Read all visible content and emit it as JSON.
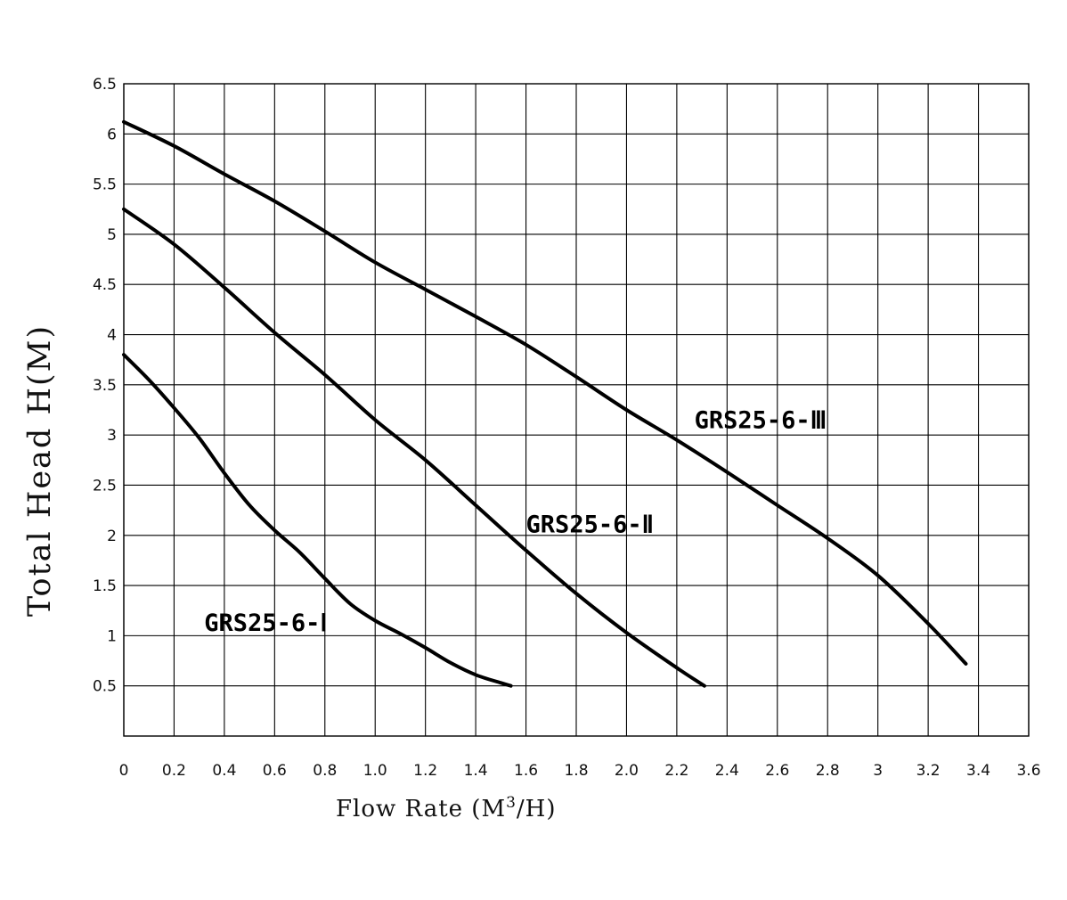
{
  "chart_data": {
    "type": "line",
    "title": "",
    "xlabel": "Flow Rate (M",
    "xlabel_sup": "3",
    "xlabel_end": "/H)",
    "ylabel": "Total Head H(M)",
    "xlim": [
      0,
      3.6
    ],
    "ylim": [
      0,
      6.5
    ],
    "grid": true,
    "x_ticks": [
      0,
      0.2,
      0.4,
      0.6,
      0.8,
      1.0,
      1.2,
      1.4,
      1.6,
      1.8,
      2.0,
      2.2,
      2.4,
      2.6,
      2.8,
      3.0,
      3.2,
      3.4,
      3.6
    ],
    "x_tick_labels": [
      "0",
      "0.2",
      "0.4",
      "0.6",
      "0.8",
      "1.0",
      "1.2",
      "1.4",
      "1.6",
      "1.8",
      "2.0",
      "2.2",
      "2.4",
      "2.6",
      "2.8",
      "3",
      "3.2",
      "3.4",
      "3.6"
    ],
    "y_ticks": [
      0.5,
      1,
      1.5,
      2,
      2.5,
      3,
      3.5,
      4,
      4.5,
      5,
      5.5,
      6,
      6.5
    ],
    "y_tick_labels": [
      "0.5",
      "1",
      "1.5",
      "2",
      "2.5",
      "3",
      "3.5",
      "4",
      "4.5",
      "5",
      "5.5",
      "6",
      "6.5"
    ],
    "series": [
      {
        "name": "GRS25-6-Ⅰ",
        "label_at": [
          0.32,
          1.05
        ],
        "points": [
          [
            0,
            3.8
          ],
          [
            0.1,
            3.55
          ],
          [
            0.2,
            3.27
          ],
          [
            0.3,
            2.97
          ],
          [
            0.4,
            2.62
          ],
          [
            0.5,
            2.3
          ],
          [
            0.6,
            2.05
          ],
          [
            0.7,
            1.83
          ],
          [
            0.8,
            1.57
          ],
          [
            0.9,
            1.32
          ],
          [
            1.0,
            1.15
          ],
          [
            1.1,
            1.02
          ],
          [
            1.2,
            0.88
          ],
          [
            1.3,
            0.73
          ],
          [
            1.4,
            0.61
          ],
          [
            1.5,
            0.53
          ],
          [
            1.54,
            0.5
          ]
        ]
      },
      {
        "name": "GRS25-6-Ⅱ",
        "label_at": [
          1.6,
          2.03
        ],
        "points": [
          [
            0,
            5.25
          ],
          [
            0.2,
            4.9
          ],
          [
            0.4,
            4.47
          ],
          [
            0.6,
            4.02
          ],
          [
            0.8,
            3.6
          ],
          [
            1.0,
            3.15
          ],
          [
            1.2,
            2.75
          ],
          [
            1.4,
            2.3
          ],
          [
            1.6,
            1.85
          ],
          [
            1.8,
            1.42
          ],
          [
            2.0,
            1.03
          ],
          [
            2.2,
            0.68
          ],
          [
            2.31,
            0.5
          ]
        ]
      },
      {
        "name": "GRS25-6-Ⅲ",
        "label_at": [
          2.27,
          3.07
        ],
        "points": [
          [
            0,
            6.12
          ],
          [
            0.2,
            5.88
          ],
          [
            0.4,
            5.6
          ],
          [
            0.6,
            5.33
          ],
          [
            0.8,
            5.03
          ],
          [
            1.0,
            4.72
          ],
          [
            1.2,
            4.45
          ],
          [
            1.4,
            4.18
          ],
          [
            1.6,
            3.9
          ],
          [
            1.8,
            3.58
          ],
          [
            2.0,
            3.25
          ],
          [
            2.2,
            2.95
          ],
          [
            2.4,
            2.63
          ],
          [
            2.6,
            2.3
          ],
          [
            2.8,
            1.97
          ],
          [
            3.0,
            1.6
          ],
          [
            3.2,
            1.12
          ],
          [
            3.35,
            0.72
          ]
        ]
      }
    ]
  }
}
